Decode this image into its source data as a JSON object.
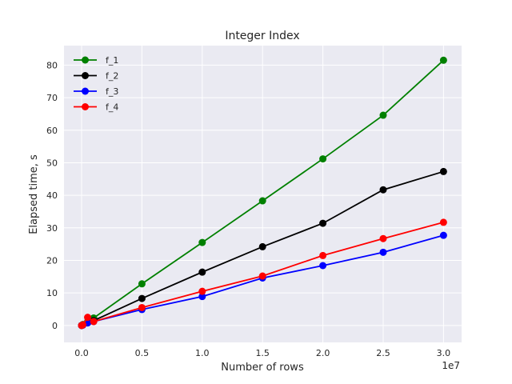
{
  "chart_data": {
    "type": "line",
    "title": "Integer Index",
    "xlabel": "Number of rows",
    "ylabel": "Elapsed time, s",
    "x_offset_label": "1e7",
    "xlim": [
      -1460000,
      31500000
    ],
    "ylim": [
      -5.2,
      86
    ],
    "xticks": [
      0,
      5000000,
      10000000,
      15000000,
      20000000,
      25000000,
      30000000
    ],
    "xtick_labels": [
      "0.0",
      "0.5",
      "1.0",
      "1.5",
      "2.0",
      "2.5",
      "3.0"
    ],
    "yticks": [
      0,
      10,
      20,
      30,
      40,
      50,
      60,
      70,
      80
    ],
    "ytick_labels": [
      "0",
      "10",
      "20",
      "30",
      "40",
      "50",
      "60",
      "70",
      "80"
    ],
    "grid": true,
    "legend_position": "top-left",
    "x": [
      0,
      100000,
      500000,
      1000000,
      5000000,
      10000000,
      15000000,
      20000000,
      25000000,
      30000000
    ],
    "series": [
      {
        "name": "f_1",
        "color": "#008000",
        "values": [
          0,
          0.3,
          1.2,
          2.3,
          12.8,
          25.5,
          38.3,
          51.2,
          64.6,
          81.5
        ]
      },
      {
        "name": "f_2",
        "color": "#000000",
        "values": [
          0,
          0.2,
          0.8,
          1.5,
          8.3,
          16.4,
          24.2,
          31.4,
          41.7,
          47.3
        ]
      },
      {
        "name": "f_3",
        "color": "#0000ff",
        "values": [
          0,
          0.1,
          0.8,
          1.2,
          4.9,
          8.9,
          14.6,
          18.4,
          22.5,
          27.7
        ]
      },
      {
        "name": "f_4",
        "color": "#ff0000",
        "values": [
          0,
          0.2,
          2.5,
          1.2,
          5.5,
          10.5,
          15.2,
          21.5,
          26.7,
          31.7
        ]
      }
    ]
  }
}
